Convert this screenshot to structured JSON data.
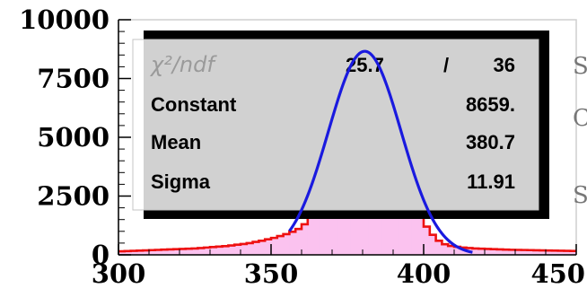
{
  "chart_data": {
    "type": "histogram",
    "xlim": [
      300,
      450
    ],
    "ylim": [
      0,
      10000
    ],
    "x_ticks": [
      "300",
      "350",
      "400",
      "450"
    ],
    "y_ticks": [
      "0",
      "2500",
      "5000",
      "7500",
      "10000"
    ],
    "bin_width": 2,
    "series": [
      {
        "kind": "histogram",
        "color": "#ee1111",
        "fill": "#fbc2ef",
        "x": [
          300,
          302,
          304,
          306,
          308,
          310,
          312,
          314,
          316,
          318,
          320,
          322,
          324,
          326,
          328,
          330,
          332,
          334,
          336,
          338,
          340,
          342,
          344,
          346,
          348,
          350,
          352,
          354,
          356,
          358,
          360,
          362,
          364,
          366,
          368,
          370,
          372,
          374,
          376,
          378,
          380,
          382,
          384,
          386,
          388,
          390,
          392,
          394,
          396,
          398,
          400,
          402,
          404,
          406,
          408,
          410,
          412,
          414,
          416,
          418,
          420,
          422,
          424,
          426,
          428,
          430,
          432,
          434,
          436,
          438,
          440,
          442,
          444,
          446,
          448
        ],
        "values": [
          150,
          160,
          170,
          180,
          190,
          200,
          210,
          220,
          230,
          240,
          250,
          260,
          270,
          290,
          310,
          330,
          350,
          370,
          400,
          430,
          460,
          500,
          550,
          600,
          660,
          720,
          800,
          880,
          980,
          1100,
          1300,
          1600,
          2000,
          2600,
          3300,
          4200,
          5300,
          6400,
          7500,
          8300,
          8900,
          8700,
          8200,
          7300,
          6300,
          5200,
          4100,
          3200,
          2400,
          1700,
          1200,
          850,
          600,
          450,
          380,
          340,
          310,
          290,
          270,
          260,
          250,
          240,
          230,
          220,
          215,
          210,
          205,
          200,
          195,
          190,
          185,
          180,
          175,
          170,
          165
        ]
      },
      {
        "kind": "gaussian-fit",
        "color": "#1a1adf",
        "range": [
          356,
          416
        ],
        "constant": 8659,
        "mean": 380.7,
        "sigma": 11.91
      }
    ],
    "stats_box": {
      "chi2_label": "χ²/ndf",
      "chi2_value": "25.7",
      "slash": "/",
      "ndf_value": "36",
      "rows": [
        {
          "label": "Constant",
          "value": "8659."
        },
        {
          "label": "Mean",
          "value": "380.7"
        },
        {
          "label": "Sigma",
          "value": "11.91"
        }
      ]
    },
    "cut_off_text": [
      "S",
      "C",
      "S"
    ]
  }
}
